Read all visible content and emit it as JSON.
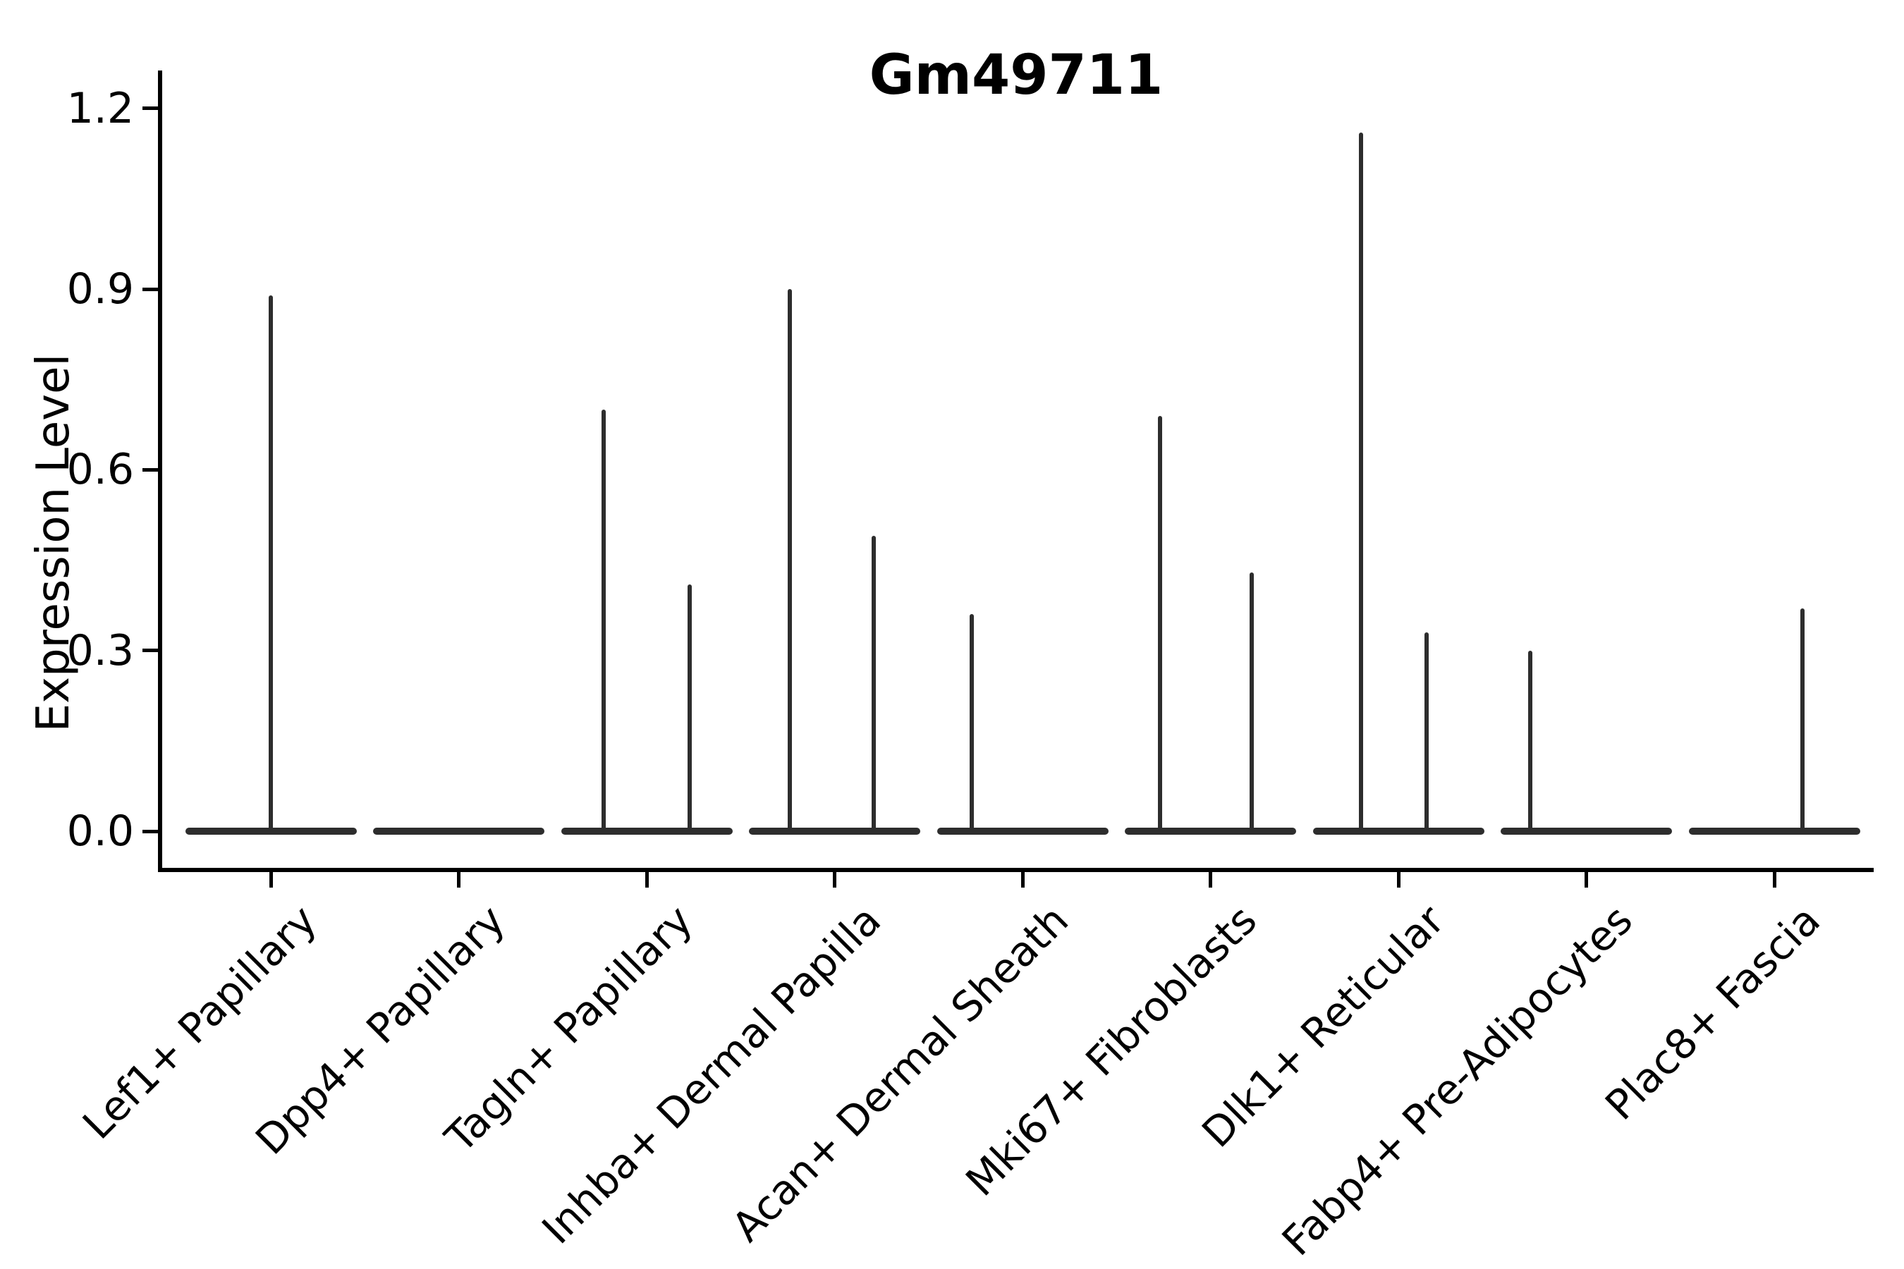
{
  "title": "Gm49711",
  "axes": {
    "ylabel": "Expression Level",
    "ytick_labels": [
      "0.0",
      "0.3",
      "0.6",
      "0.9",
      "1.2"
    ]
  },
  "chart_data": {
    "type": "violin",
    "title": "Gm49711",
    "xlabel": "",
    "ylabel": "Expression Level",
    "ylim": [
      -0.06,
      1.26
    ],
    "yticks": [
      0.0,
      0.3,
      0.6,
      0.9,
      1.2
    ],
    "grid": false,
    "legend": "none",
    "categories": [
      "Lef1+ Papillary",
      "Dpp4+ Papillary",
      "Tagln+ Papillary",
      "Inhba+ Dermal Papilla",
      "Acan+ Dermal Sheath",
      "Mki67+ Fibroblasts",
      "Dlk1+ Reticular",
      "Fabp4+ Pre-Adipocytes",
      "Plac8+ Fascia"
    ],
    "violins": [
      {
        "category": "Lef1+ Papillary",
        "baseline_value": 0.0,
        "spikes": [
          {
            "offset_frac": 0.0,
            "max": 0.89
          }
        ]
      },
      {
        "category": "Dpp4+ Papillary",
        "baseline_value": 0.0,
        "spikes": []
      },
      {
        "category": "Tagln+ Papillary",
        "baseline_value": 0.0,
        "spikes": [
          {
            "offset_frac": -0.23,
            "max": 0.7
          },
          {
            "offset_frac": 0.23,
            "max": 0.41
          }
        ]
      },
      {
        "category": "Inhba+ Dermal Papilla",
        "baseline_value": 0.0,
        "spikes": [
          {
            "offset_frac": -0.24,
            "max": 0.9
          },
          {
            "offset_frac": 0.21,
            "max": 0.49
          }
        ]
      },
      {
        "category": "Acan+ Dermal Sheath",
        "baseline_value": 0.0,
        "spikes": [
          {
            "offset_frac": -0.27,
            "max": 0.36
          }
        ]
      },
      {
        "category": "Mki67+ Fibroblasts",
        "baseline_value": 0.0,
        "spikes": [
          {
            "offset_frac": -0.27,
            "max": 0.69
          },
          {
            "offset_frac": 0.22,
            "max": 0.43
          }
        ]
      },
      {
        "category": "Dlk1+ Reticular",
        "baseline_value": 0.0,
        "spikes": [
          {
            "offset_frac": -0.2,
            "max": 1.16
          },
          {
            "offset_frac": 0.15,
            "max": 0.33
          }
        ]
      },
      {
        "category": "Fabp4+ Pre-Adipocytes",
        "baseline_value": 0.0,
        "spikes": [
          {
            "offset_frac": -0.3,
            "max": 0.3
          }
        ]
      },
      {
        "category": "Plac8+ Fascia",
        "baseline_value": 0.0,
        "spikes": [
          {
            "offset_frac": 0.15,
            "max": 0.37
          }
        ]
      }
    ],
    "colors": {
      "violin_line": "#2d2d2d",
      "spine": "#000000",
      "text": "#000000",
      "background": "#ffffff"
    }
  }
}
